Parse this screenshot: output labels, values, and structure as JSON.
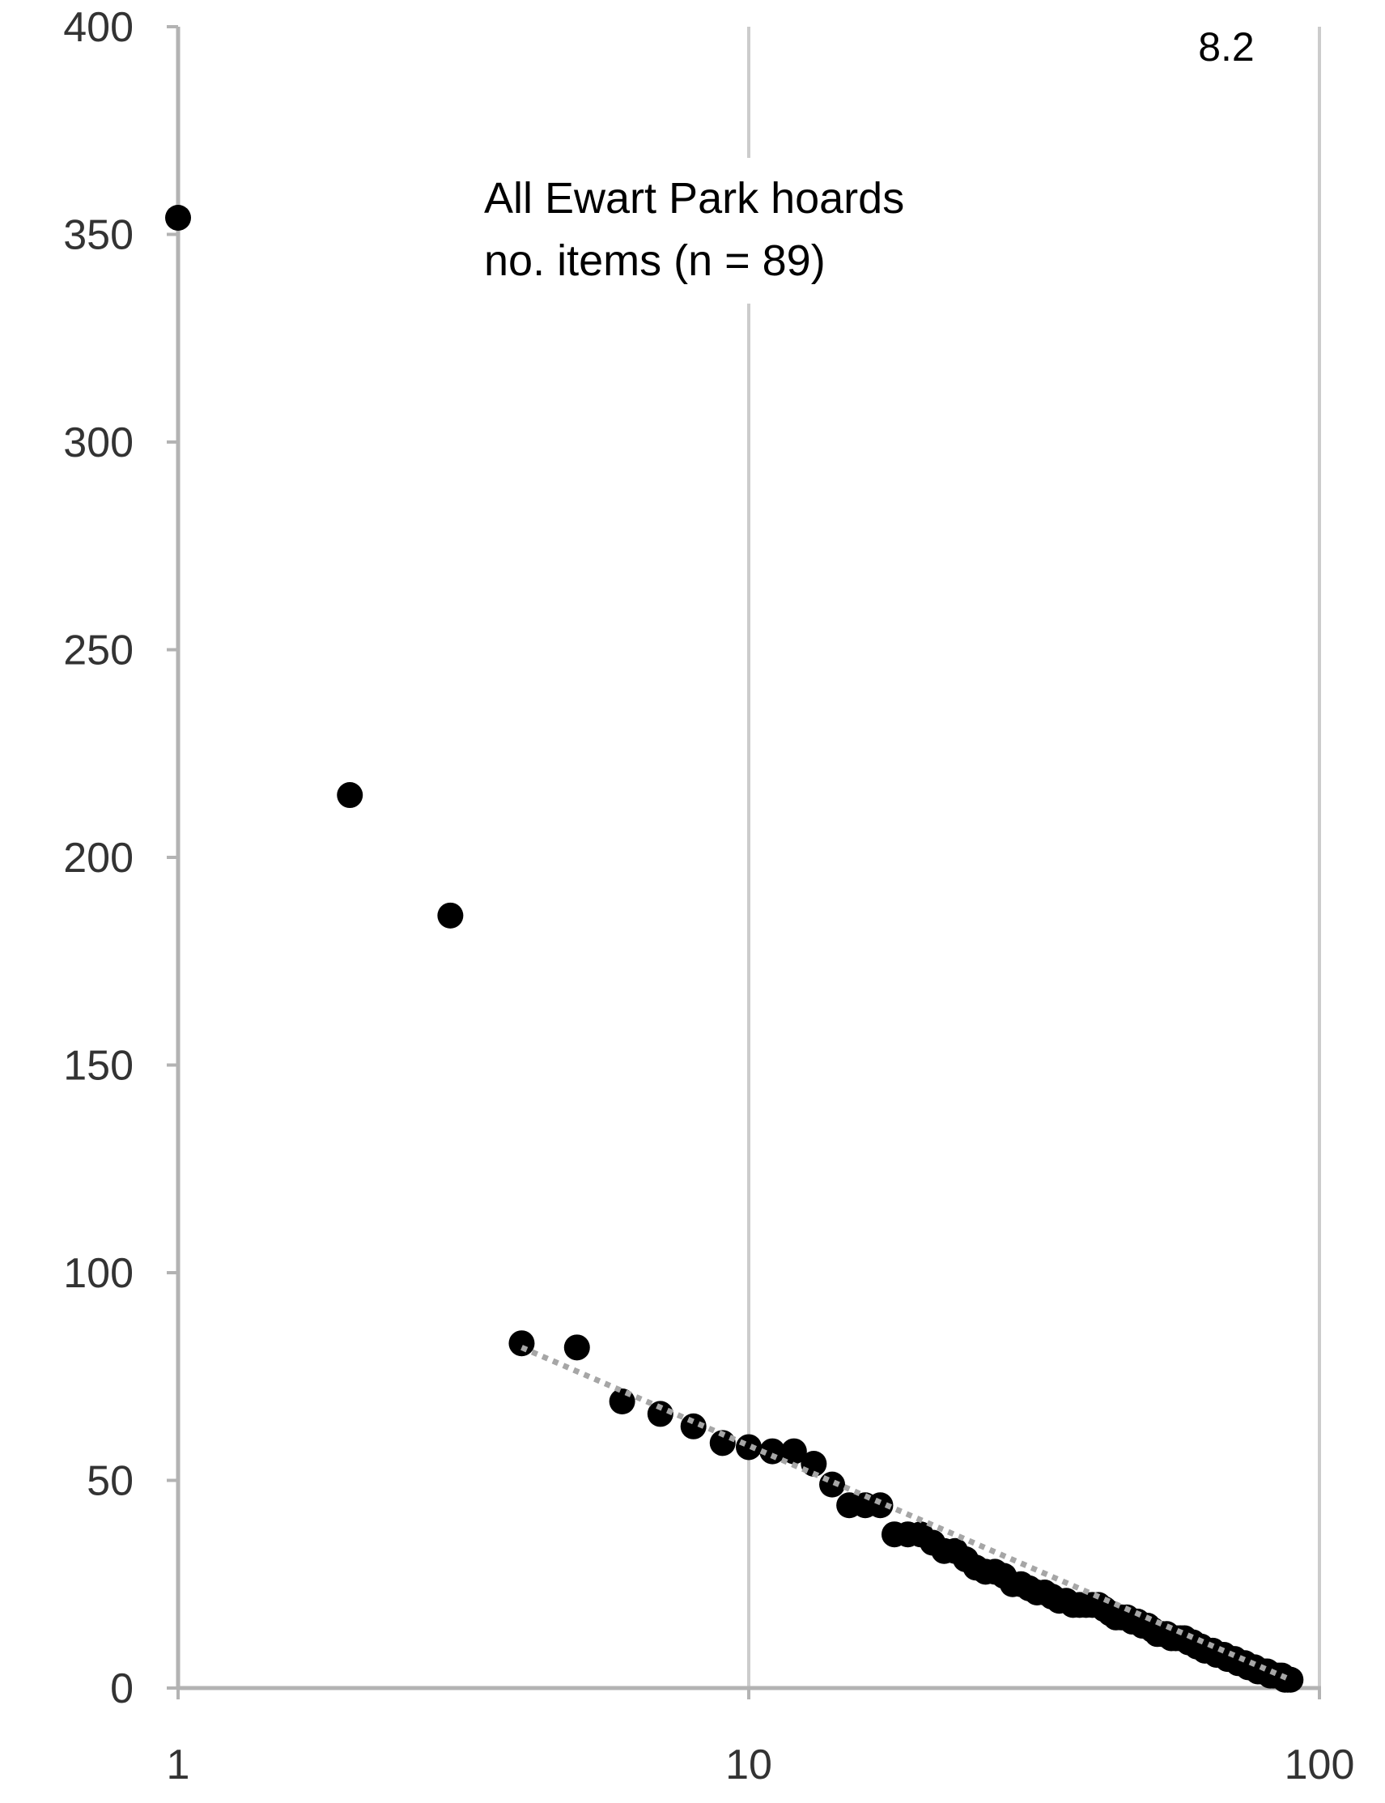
{
  "chart_data": {
    "type": "scatter",
    "title": "",
    "panel_label": "8.2",
    "annotation_lines": [
      "All Ewart Park hoards",
      "no. items (n = 89)"
    ],
    "xlabel": "",
    "ylabel": "",
    "x_scale": "log",
    "xlim": [
      1,
      100
    ],
    "ylim": [
      0,
      400
    ],
    "x_ticks": [
      "1",
      "10",
      "100"
    ],
    "y_ticks": [
      "0",
      "50",
      "100",
      "150",
      "200",
      "250",
      "300",
      "350",
      "400"
    ],
    "grid": "vertical gridlines at x = 10 and x = 100",
    "legend": "none",
    "colors": {
      "points": "#000000",
      "trendline": "#a6a6a6",
      "axis": "#b3b3b3",
      "grid": "#cccccc"
    },
    "trendline": {
      "style": "dotted",
      "points": [
        [
          4,
          82
        ],
        [
          89,
          2
        ]
      ]
    },
    "series": [
      {
        "x": [
          1,
          2,
          3,
          4,
          5,
          6,
          7,
          8,
          9,
          10,
          11,
          12,
          13,
          14,
          15,
          16,
          17,
          18,
          19,
          20,
          21,
          22,
          23,
          24,
          25,
          26,
          27,
          28,
          29,
          30,
          31,
          32,
          33,
          34,
          35,
          36,
          37,
          38,
          39,
          40,
          41,
          42,
          43,
          44,
          45,
          46,
          47,
          48,
          49,
          50,
          51,
          52,
          53,
          54,
          55,
          56,
          57,
          58,
          59,
          60,
          61,
          62,
          63,
          64,
          65,
          66,
          67,
          68,
          69,
          70,
          71,
          72,
          73,
          74,
          75,
          76,
          77,
          78,
          79,
          80,
          81,
          82,
          83,
          84,
          85,
          86,
          87,
          88,
          89
        ],
        "y": [
          354,
          215,
          186,
          83,
          82,
          69,
          66,
          63,
          59,
          58,
          57,
          57,
          54,
          49,
          44,
          44,
          44,
          37,
          37,
          37,
          35,
          33,
          33,
          31,
          29,
          28,
          28,
          27,
          25,
          25,
          24,
          23,
          23,
          22,
          21,
          21,
          20,
          20,
          20,
          20,
          20,
          19,
          18,
          17,
          17,
          17,
          16,
          16,
          15,
          15,
          14,
          13,
          13,
          13,
          12,
          12,
          12,
          12,
          11,
          11,
          10,
          10,
          9,
          9,
          9,
          8,
          8,
          8,
          7,
          7,
          7,
          6,
          6,
          6,
          5,
          5,
          5,
          4,
          4,
          4,
          4,
          3,
          3,
          3,
          3,
          3,
          2,
          2,
          2
        ]
      }
    ]
  }
}
